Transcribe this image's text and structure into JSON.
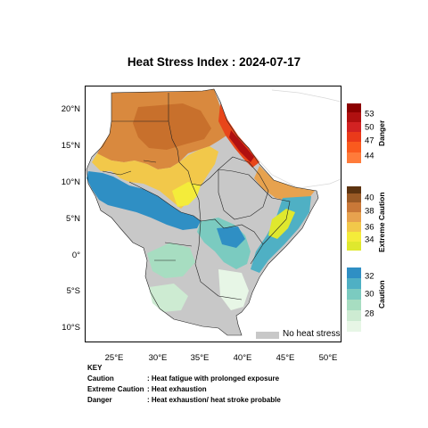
{
  "title": "Heat Stress Index : 2024-07-17",
  "lat_labels": [
    "20°N",
    "15°N",
    "10°N",
    "5°N",
    "0°",
    "5°S",
    "10°S"
  ],
  "lon_labels": [
    "25°E",
    "30°E",
    "35°E",
    "40°E",
    "45°E",
    "50°E"
  ],
  "no_heat_stress": {
    "label": "No heat stress",
    "color": "#c8c8c8"
  },
  "legend": {
    "danger": {
      "label": "Danger",
      "ticks": [
        "53",
        "50",
        "47",
        "44"
      ],
      "colors": [
        "#8b0000",
        "#b01010",
        "#d22222",
        "#ea3a1a",
        "#fa5a1e",
        "#ff7b3a"
      ]
    },
    "extreme_caution": {
      "label": "Extreme Caution",
      "ticks": [
        "40",
        "38",
        "36",
        "34"
      ],
      "colors": [
        "#5c3310",
        "#9a5a26",
        "#c97838",
        "#e7a24e",
        "#f2c84a",
        "#f4ec3a",
        "#dfe82e"
      ]
    },
    "caution": {
      "label": "Caution",
      "ticks": [
        "32",
        "30",
        "28"
      ],
      "colors": [
        "#2f8fc4",
        "#4fb0c4",
        "#7bcbc0",
        "#a7ddc1",
        "#cdebd2",
        "#e7f6e6"
      ]
    }
  },
  "key": {
    "title": "KEY",
    "rows": [
      {
        "term": "Caution",
        "desc": ": Heat fatigue with prolonged exposure"
      },
      {
        "term": "Extreme Caution",
        "desc": ": Heat exhaustion"
      },
      {
        "term": "Danger",
        "desc": ": Heat exhaustion/ heat stroke probable"
      }
    ]
  }
}
